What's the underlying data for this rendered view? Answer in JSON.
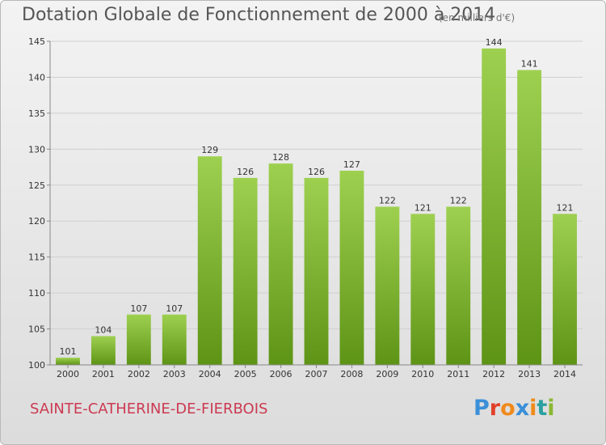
{
  "header": {
    "title": "Dotation Globale de Fonctionnement de 2000 à 2014",
    "subtitle": "(en milliers d'€)"
  },
  "footer": {
    "place": "SAINTE-CATHERINE-DE-FIERBOIS",
    "logo_text": "Proxiti",
    "logo_colors": [
      "#3a8fd8",
      "#e0402a",
      "#f08a1c",
      "#3a8fd8",
      "#f08a1c",
      "#2aa0a0",
      "#8ab832"
    ]
  },
  "colors": {
    "bar_light": "#9ed050",
    "bar_dark": "#5e9416",
    "grid": "#d0d0d0",
    "axis": "#888888"
  },
  "chart_data": {
    "type": "bar",
    "title": "Dotation Globale de Fonctionnement de 2000 à 2014",
    "subtitle": "(en milliers d'€)",
    "categories": [
      "2000",
      "2001",
      "2002",
      "2003",
      "2004",
      "2005",
      "2006",
      "2007",
      "2008",
      "2009",
      "2010",
      "2011",
      "2012",
      "2013",
      "2014"
    ],
    "values": [
      101,
      104,
      107,
      107,
      129,
      126,
      128,
      126,
      127,
      122,
      121,
      122,
      144,
      141,
      121
    ],
    "ylim": [
      100,
      145
    ],
    "yticks": [
      100,
      105,
      110,
      115,
      120,
      125,
      130,
      135,
      140,
      145
    ],
    "grid": true,
    "xlabel": "",
    "ylabel": ""
  }
}
